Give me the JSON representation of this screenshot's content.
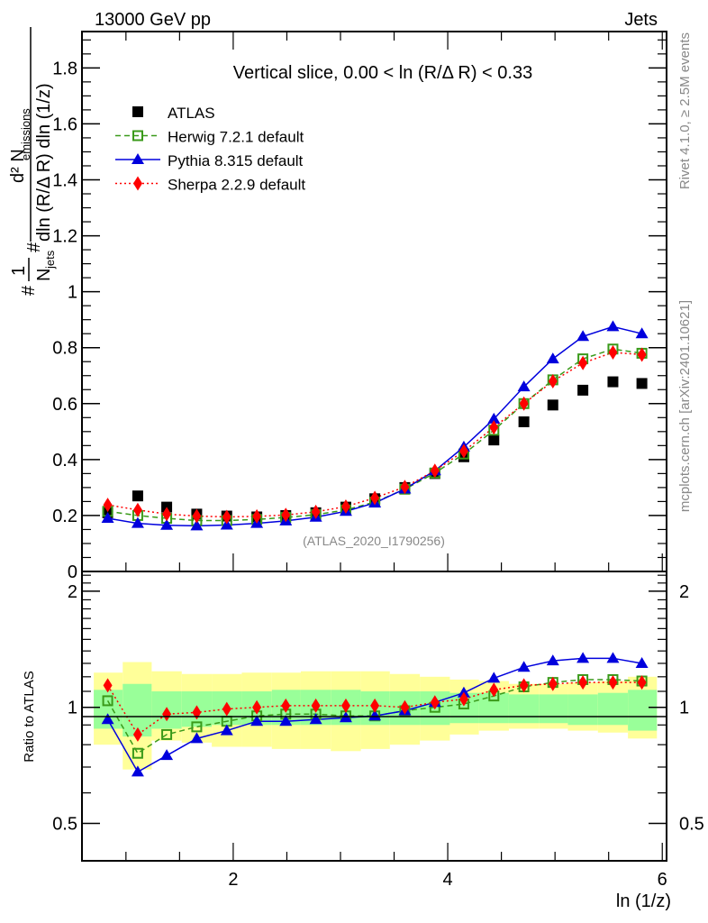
{
  "header": {
    "left_label": "13000 GeV pp",
    "right_label": "Jets"
  },
  "side_labels": {
    "rivet": "Rivet 4.1.0, ≥ 2.5M events",
    "mcplots": "mcplots.cern.ch [arXiv:2401.10621]"
  },
  "chart_data": [
    {
      "type": "scatter",
      "panel": "main",
      "title": "Vertical slice, 0.00 < ln (R/Δ R) < 0.33",
      "watermark": "(ATLAS_2020_I1790256)",
      "ylabel_parts": {
        "prefix": "#",
        "one_over": "1",
        "n_jets": "N",
        "n_jets_sub": "jets",
        "hash2": "#",
        "numerator": "d² N",
        "numerator_sub": "emissions",
        "denominator": "dln (R/Δ R) dln (1/z)"
      },
      "xlabel": "ln (1/z)",
      "xlim": [
        0.59,
        6.04
      ],
      "ylim": [
        0,
        1.93
      ],
      "yticks": [
        0,
        0.2,
        0.4,
        0.6,
        0.8,
        1,
        1.2,
        1.4,
        1.6,
        1.8
      ],
      "ytick_labels": [
        "0",
        "0.2",
        "0.4",
        "0.6",
        "0.8",
        "1",
        "1.2",
        "1.4",
        "1.6",
        "1.8"
      ],
      "legend_position": "top-left",
      "x": [
        0.83,
        1.11,
        1.38,
        1.66,
        1.94,
        2.22,
        2.49,
        2.77,
        3.05,
        3.32,
        3.6,
        3.88,
        4.15,
        4.43,
        4.71,
        4.98,
        5.26,
        5.54,
        5.81
      ],
      "series": [
        {
          "name": "ATLAS",
          "color": "#000000",
          "marker": "square-filled",
          "line": "none",
          "values": [
            0.21,
            0.27,
            0.23,
            0.205,
            0.198,
            0.195,
            0.2,
            0.21,
            0.23,
            0.26,
            0.3,
            0.35,
            0.41,
            0.47,
            0.535,
            0.595,
            0.648,
            0.678,
            0.672
          ]
        },
        {
          "name": "Herwig 7.2.1 default",
          "color": "#3a9a1a",
          "marker": "square-open",
          "line": "dashed",
          "values": [
            0.215,
            0.2,
            0.19,
            0.182,
            0.182,
            0.186,
            0.193,
            0.203,
            0.22,
            0.248,
            0.294,
            0.352,
            0.42,
            0.505,
            0.6,
            0.685,
            0.76,
            0.795,
            0.78
          ]
        },
        {
          "name": "Pythia 8.315 default",
          "color": "#0000dd",
          "marker": "triangle-filled",
          "line": "solid",
          "values": [
            0.19,
            0.172,
            0.165,
            0.163,
            0.166,
            0.172,
            0.181,
            0.194,
            0.215,
            0.245,
            0.295,
            0.36,
            0.445,
            0.545,
            0.66,
            0.76,
            0.84,
            0.875,
            0.85
          ]
        },
        {
          "name": "Sherpa 2.2.9 default",
          "color": "#ff0000",
          "marker": "diamond-filled",
          "line": "dotted",
          "values": [
            0.238,
            0.22,
            0.205,
            0.198,
            0.195,
            0.197,
            0.202,
            0.213,
            0.232,
            0.263,
            0.302,
            0.36,
            0.43,
            0.515,
            0.6,
            0.68,
            0.745,
            0.783,
            0.775
          ]
        }
      ]
    },
    {
      "type": "scatter",
      "panel": "ratio",
      "ylabel": "Ratio to ATLAS",
      "xlabel": "ln (1/z)",
      "yscale": "log",
      "xlim": [
        0.59,
        6.04
      ],
      "ylim": [
        0.4,
        2.25
      ],
      "yticks": [
        0.5,
        1,
        2
      ],
      "ytick_labels": [
        "0.5",
        "1",
        "2"
      ],
      "xticks": [
        2,
        4,
        6
      ],
      "xtick_labels": [
        "2",
        "4",
        "6"
      ],
      "reference_line": 1,
      "bin_edges": [
        0.7,
        0.97,
        1.24,
        1.52,
        1.8,
        2.08,
        2.36,
        2.63,
        2.91,
        3.19,
        3.46,
        3.74,
        4.02,
        4.29,
        4.57,
        4.85,
        5.12,
        5.4,
        5.68,
        5.95
      ],
      "band_stat": {
        "color": "#99ff99",
        "lo": [
          0.88,
          0.84,
          0.88,
          0.89,
          0.9,
          0.9,
          0.9,
          0.9,
          0.9,
          0.9,
          0.9,
          0.9,
          0.91,
          0.91,
          0.91,
          0.91,
          0.9,
          0.9,
          0.87
        ],
        "hi": [
          1.11,
          1.15,
          1.1,
          1.1,
          1.1,
          1.1,
          1.11,
          1.11,
          1.11,
          1.1,
          1.1,
          1.1,
          1.09,
          1.09,
          1.08,
          1.08,
          1.08,
          1.09,
          1.11
        ]
      },
      "band_total": {
        "color": "#ffff99",
        "lo": [
          0.8,
          0.69,
          0.82,
          0.81,
          0.79,
          0.79,
          0.78,
          0.78,
          0.77,
          0.78,
          0.8,
          0.82,
          0.85,
          0.87,
          0.88,
          0.88,
          0.87,
          0.86,
          0.83
        ],
        "hi": [
          1.23,
          1.31,
          1.24,
          1.22,
          1.22,
          1.23,
          1.23,
          1.24,
          1.24,
          1.24,
          1.22,
          1.2,
          1.18,
          1.17,
          1.15,
          1.15,
          1.16,
          1.17,
          1.2
        ]
      },
      "x": [
        0.83,
        1.11,
        1.38,
        1.66,
        1.94,
        2.22,
        2.49,
        2.77,
        3.05,
        3.32,
        3.6,
        3.88,
        4.15,
        4.43,
        4.71,
        4.98,
        5.26,
        5.54,
        5.81
      ],
      "series": [
        {
          "name": "Herwig 7.2.1 default",
          "color": "#3a9a1a",
          "marker": "square-open",
          "line": "dashed",
          "values": [
            1.04,
            0.76,
            0.85,
            0.89,
            0.92,
            0.95,
            0.96,
            0.96,
            0.95,
            0.95,
            0.98,
            1.0,
            1.02,
            1.07,
            1.13,
            1.16,
            1.18,
            1.18,
            1.17
          ]
        },
        {
          "name": "Pythia 8.315 default",
          "color": "#0000dd",
          "marker": "triangle-filled",
          "line": "solid",
          "values": [
            0.93,
            0.68,
            0.75,
            0.83,
            0.87,
            0.92,
            0.92,
            0.93,
            0.94,
            0.95,
            0.98,
            1.03,
            1.09,
            1.19,
            1.27,
            1.32,
            1.34,
            1.34,
            1.3
          ]
        },
        {
          "name": "Sherpa 2.2.9 default",
          "color": "#ff0000",
          "marker": "diamond-filled",
          "line": "dotted",
          "values": [
            1.14,
            0.85,
            0.96,
            0.97,
            0.99,
            1.0,
            1.01,
            1.01,
            1.01,
            1.01,
            1.0,
            1.03,
            1.05,
            1.11,
            1.14,
            1.15,
            1.16,
            1.16,
            1.16
          ]
        }
      ]
    }
  ]
}
